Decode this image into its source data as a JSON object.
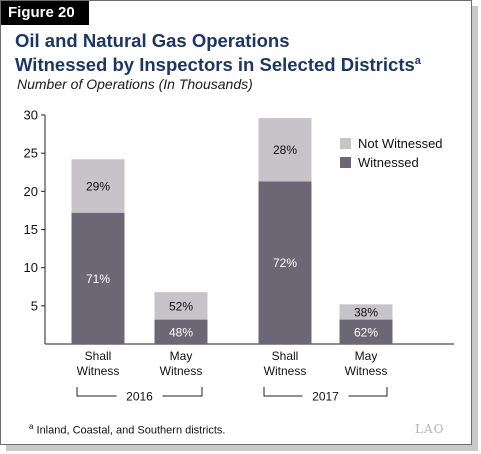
{
  "figure_label": "Figure 20",
  "title_line1": "Oil and Natural Gas Operations",
  "title_line2": "Witnessed by Inspectors in Selected Districts",
  "title_sup": "a",
  "footnote_marker": "a",
  "footnote_text": " Inland, Coastal, and Southern districts.",
  "logo_text": "LAO",
  "colors": {
    "witnessed": "#6c6775",
    "not_witnessed": "#c6c4c8",
    "title": "#1c3764"
  },
  "chart_data": {
    "type": "bar",
    "stacked": true,
    "title": "Oil and Natural Gas Operations Witnessed by Inspectors in Selected Districts",
    "ylabel": "Number of Operations (In Thousands)",
    "ylim": [
      0,
      30
    ],
    "yticks": [
      5,
      10,
      15,
      20,
      25,
      30
    ],
    "legend_position": "top-right",
    "categories": [
      {
        "line1": "Shall",
        "line2": "Witness",
        "group": "2016"
      },
      {
        "line1": "May",
        "line2": "Witness",
        "group": "2016"
      },
      {
        "line1": "Shall",
        "line2": "Witness",
        "group": "2017"
      },
      {
        "line1": "May",
        "line2": "Witness",
        "group": "2017"
      }
    ],
    "groups": [
      "2016",
      "2017"
    ],
    "series": [
      {
        "name": "Witnessed",
        "values": [
          17.2,
          3.2,
          21.3,
          3.2
        ],
        "labels": [
          "71%",
          "48%",
          "72%",
          "62%"
        ]
      },
      {
        "name": "Not Witnessed",
        "values": [
          7.0,
          3.6,
          8.3,
          2.0
        ],
        "labels": [
          "29%",
          "52%",
          "28%",
          "38%"
        ]
      }
    ]
  }
}
